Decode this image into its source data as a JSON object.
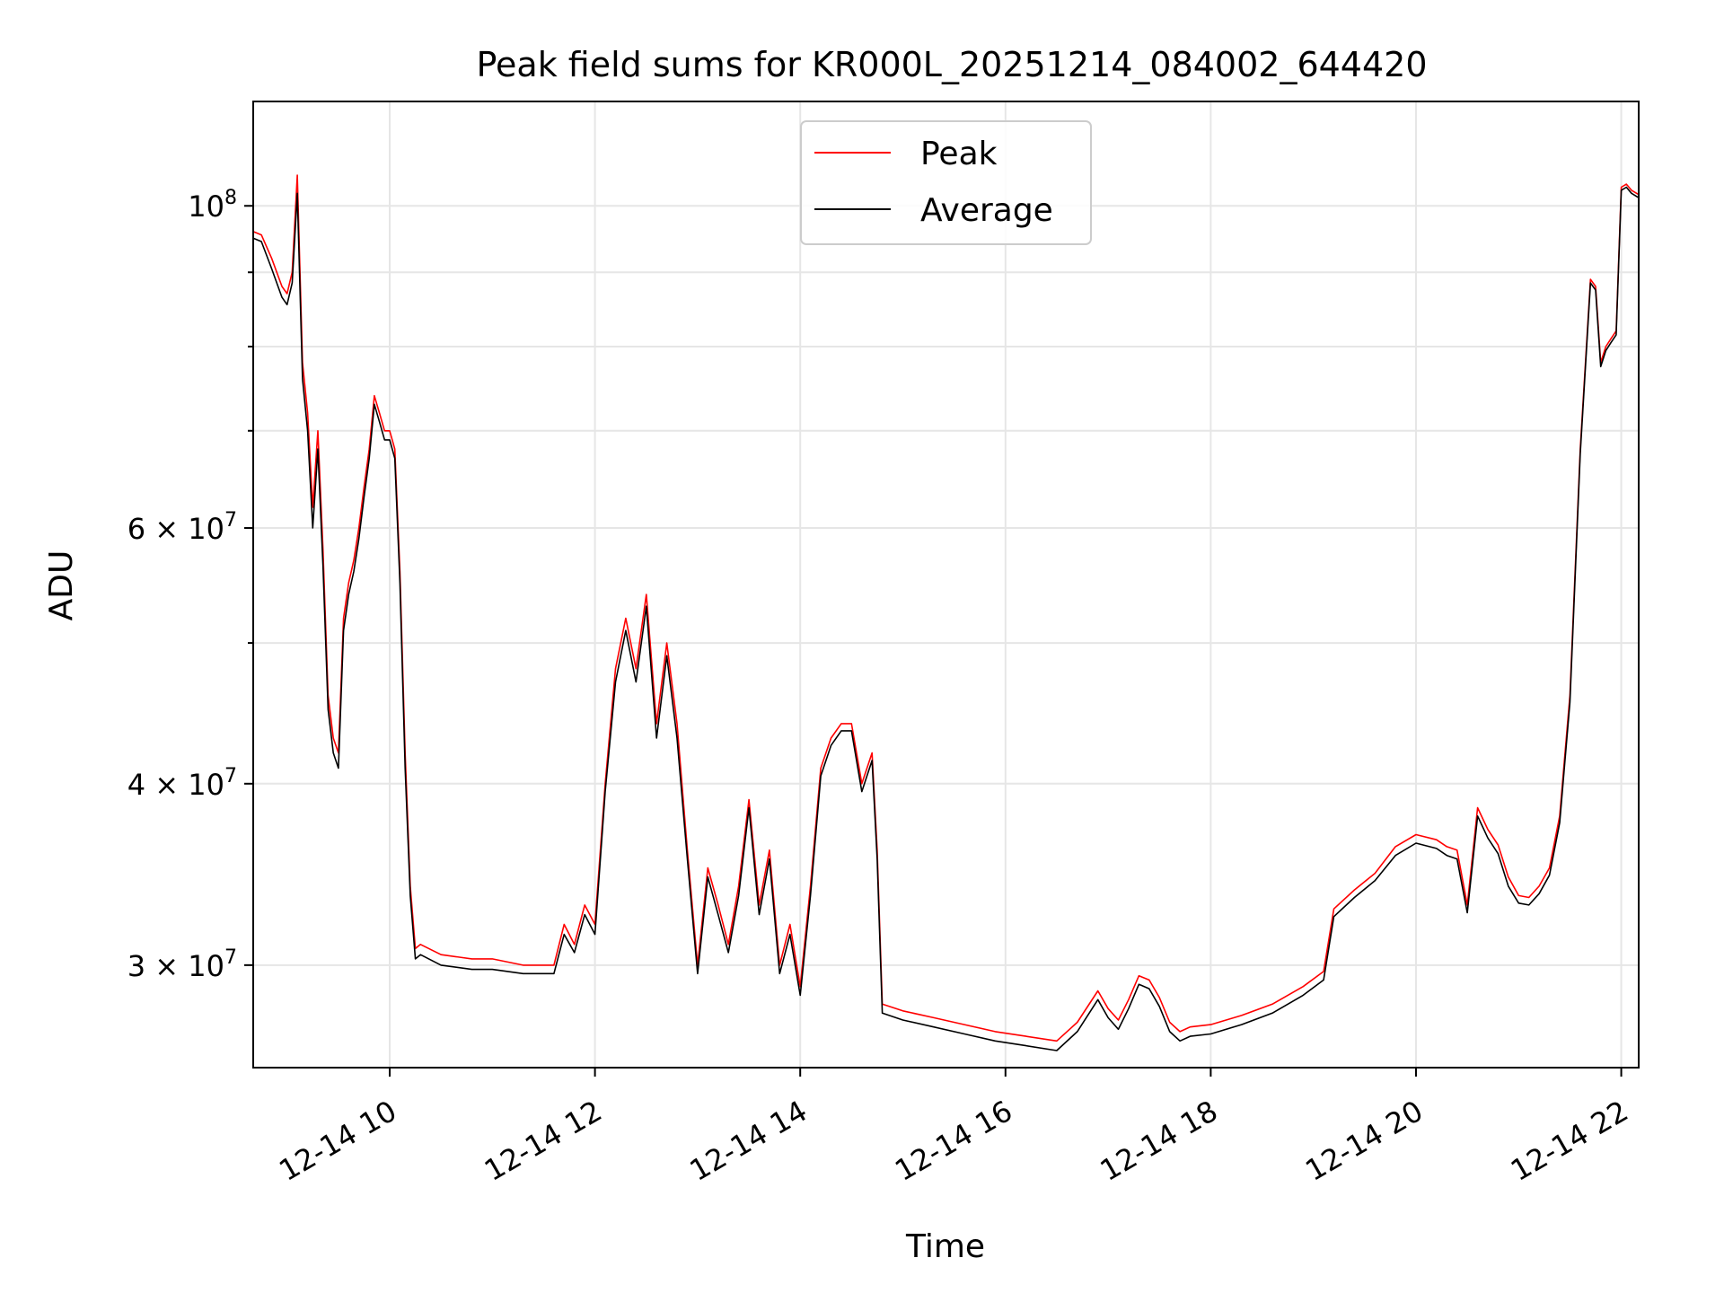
{
  "chart_data": {
    "type": "line",
    "title": "Peak field sums for KR000L_20251214_084002_644420",
    "xlabel": "Time",
    "ylabel": "ADU",
    "yscale": "log",
    "ylim": [
      25500000,
      118000000
    ],
    "xlim": [
      8.67,
      22.17
    ],
    "grid": true,
    "legend_position": "upper center",
    "x_ticks": [
      {
        "value": 10,
        "label": "12-14 10"
      },
      {
        "value": 12,
        "label": "12-14 12"
      },
      {
        "value": 14,
        "label": "12-14 14"
      },
      {
        "value": 16,
        "label": "12-14 16"
      },
      {
        "value": 18,
        "label": "12-14 18"
      },
      {
        "value": 20,
        "label": "12-14 20"
      },
      {
        "value": 22,
        "label": "12-14 22"
      }
    ],
    "y_ticks": [
      {
        "value": 100000000,
        "base": "10",
        "exp": "8",
        "mult": ""
      },
      {
        "value": 60000000,
        "base": "10",
        "exp": "7",
        "mult": "6 × "
      },
      {
        "value": 40000000,
        "base": "10",
        "exp": "7",
        "mult": "4 × "
      },
      {
        "value": 30000000,
        "base": "10",
        "exp": "7",
        "mult": "3 × "
      }
    ],
    "y_minor_ticks": [
      90000000,
      80000000,
      70000000,
      50000000
    ],
    "x": [
      8.67,
      8.75,
      8.85,
      8.95,
      9.0,
      9.05,
      9.1,
      9.15,
      9.2,
      9.25,
      9.3,
      9.35,
      9.4,
      9.45,
      9.5,
      9.55,
      9.6,
      9.65,
      9.7,
      9.75,
      9.8,
      9.85,
      9.9,
      9.95,
      10.0,
      10.05,
      10.1,
      10.15,
      10.2,
      10.25,
      10.3,
      10.5,
      10.8,
      11.0,
      11.3,
      11.6,
      11.7,
      11.8,
      11.9,
      12.0,
      12.1,
      12.2,
      12.3,
      12.4,
      12.5,
      12.6,
      12.7,
      12.8,
      12.9,
      13.0,
      13.1,
      13.2,
      13.3,
      13.4,
      13.5,
      13.6,
      13.7,
      13.8,
      13.9,
      14.0,
      14.1,
      14.2,
      14.3,
      14.4,
      14.5,
      14.6,
      14.7,
      14.75,
      14.8,
      15.0,
      15.3,
      15.6,
      15.9,
      16.2,
      16.5,
      16.7,
      16.9,
      17.0,
      17.1,
      17.2,
      17.3,
      17.4,
      17.5,
      17.6,
      17.7,
      17.8,
      18.0,
      18.3,
      18.6,
      18.9,
      19.1,
      19.2,
      19.4,
      19.6,
      19.8,
      20.0,
      20.2,
      20.3,
      20.4,
      20.5,
      20.6,
      20.7,
      20.8,
      20.9,
      21.0,
      21.1,
      21.2,
      21.3,
      21.4,
      21.5,
      21.6,
      21.7,
      21.75,
      21.8,
      21.85,
      21.9,
      21.95,
      22.0,
      22.05,
      22.1,
      22.17
    ],
    "series": [
      {
        "name": "Peak",
        "color": "#ff0000",
        "values": [
          96000000,
          95500000,
          92000000,
          88000000,
          87000000,
          90000000,
          105000000,
          78000000,
          72000000,
          62000000,
          70000000,
          58000000,
          46000000,
          43000000,
          42000000,
          52000000,
          55000000,
          57000000,
          60000000,
          64000000,
          68000000,
          74000000,
          72000000,
          70000000,
          70000000,
          68000000,
          56000000,
          42000000,
          34000000,
          30800000,
          31000000,
          30500000,
          30300000,
          30300000,
          30000000,
          30000000,
          32000000,
          31000000,
          33000000,
          32000000,
          40000000,
          48000000,
          52000000,
          48000000,
          54000000,
          44000000,
          50000000,
          44000000,
          36000000,
          30000000,
          35000000,
          33000000,
          31000000,
          34000000,
          39000000,
          33000000,
          36000000,
          30000000,
          32000000,
          29000000,
          34000000,
          41000000,
          43000000,
          44000000,
          44000000,
          40000000,
          42000000,
          36000000,
          28200000,
          27900000,
          27600000,
          27300000,
          27000000,
          26800000,
          26600000,
          27400000,
          28800000,
          28000000,
          27500000,
          28400000,
          29500000,
          29300000,
          28500000,
          27400000,
          27000000,
          27200000,
          27300000,
          27700000,
          28200000,
          29000000,
          29700000,
          32800000,
          33800000,
          34700000,
          36200000,
          36900000,
          36600000,
          36200000,
          36000000,
          33000000,
          38500000,
          37200000,
          36300000,
          34500000,
          33500000,
          33400000,
          34000000,
          35000000,
          38000000,
          46000000,
          68000000,
          89000000,
          88000000,
          78000000,
          80000000,
          81000000,
          82000000,
          103000000,
          103500000,
          102500000,
          101800000
        ]
      },
      {
        "name": "Average",
        "color": "#000000",
        "values": [
          95000000,
          94500000,
          90500000,
          86500000,
          85500000,
          88500000,
          102000000,
          76000000,
          70000000,
          60000000,
          68000000,
          56500000,
          45000000,
          42000000,
          41000000,
          51000000,
          54000000,
          56000000,
          59000000,
          63000000,
          67000000,
          73000000,
          71000000,
          69000000,
          69000000,
          67000000,
          55000000,
          41000000,
          33500000,
          30300000,
          30500000,
          30000000,
          29800000,
          29800000,
          29600000,
          29600000,
          31500000,
          30600000,
          32500000,
          31500000,
          39500000,
          47000000,
          51000000,
          47000000,
          53000000,
          43000000,
          49000000,
          43000000,
          35500000,
          29600000,
          34500000,
          32500000,
          30600000,
          33500000,
          38500000,
          32500000,
          35500000,
          29600000,
          31500000,
          28600000,
          33500000,
          40500000,
          42500000,
          43500000,
          43500000,
          39500000,
          41500000,
          35500000,
          27800000,
          27500000,
          27200000,
          26900000,
          26600000,
          26400000,
          26200000,
          27000000,
          28400000,
          27600000,
          27100000,
          28000000,
          29100000,
          28900000,
          28100000,
          27000000,
          26600000,
          26800000,
          26900000,
          27300000,
          27800000,
          28600000,
          29300000,
          32400000,
          33400000,
          34300000,
          35700000,
          36400000,
          36100000,
          35700000,
          35500000,
          32600000,
          38000000,
          36700000,
          35800000,
          34000000,
          33100000,
          33000000,
          33600000,
          34600000,
          37600000,
          45500000,
          67500000,
          88500000,
          87500000,
          77500000,
          79500000,
          80500000,
          81500000,
          102500000,
          103000000,
          102000000,
          101300000
        ]
      }
    ]
  }
}
